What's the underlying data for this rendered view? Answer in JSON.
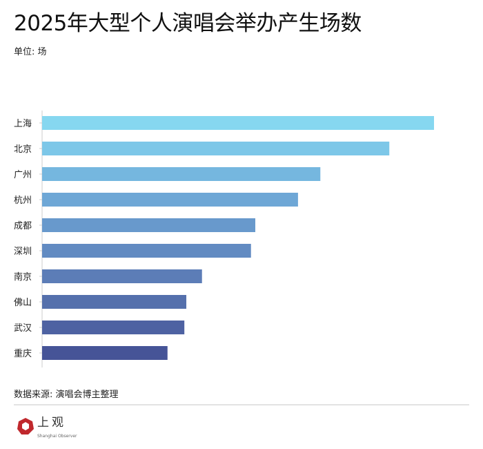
{
  "chart_data": {
    "type": "bar",
    "orientation": "horizontal",
    "title": "2025年大型个人演唱会举办产生场数",
    "unit_label": "单位: 场",
    "categories": [
      "上海",
      "北京",
      "广州",
      "杭州",
      "成都",
      "深圳",
      "南京",
      "佛山",
      "武汉",
      "重庆"
    ],
    "values": [
      100,
      88.6,
      71,
      65.3,
      54.4,
      53.3,
      40.8,
      36.8,
      36.3,
      32
    ],
    "xlim": [
      0,
      100
    ],
    "grid": false,
    "colors": [
      "#86d7f0",
      "#7dc7e8",
      "#75b7df",
      "#6ea7d6",
      "#6899cc",
      "#628bc2",
      "#5c7db7",
      "#5570ac",
      "#4e62a2",
      "#465497"
    ]
  },
  "source": "数据来源: 演唱会博主整理",
  "logo": {
    "cn": "上观",
    "en": "Shanghai Observer"
  }
}
